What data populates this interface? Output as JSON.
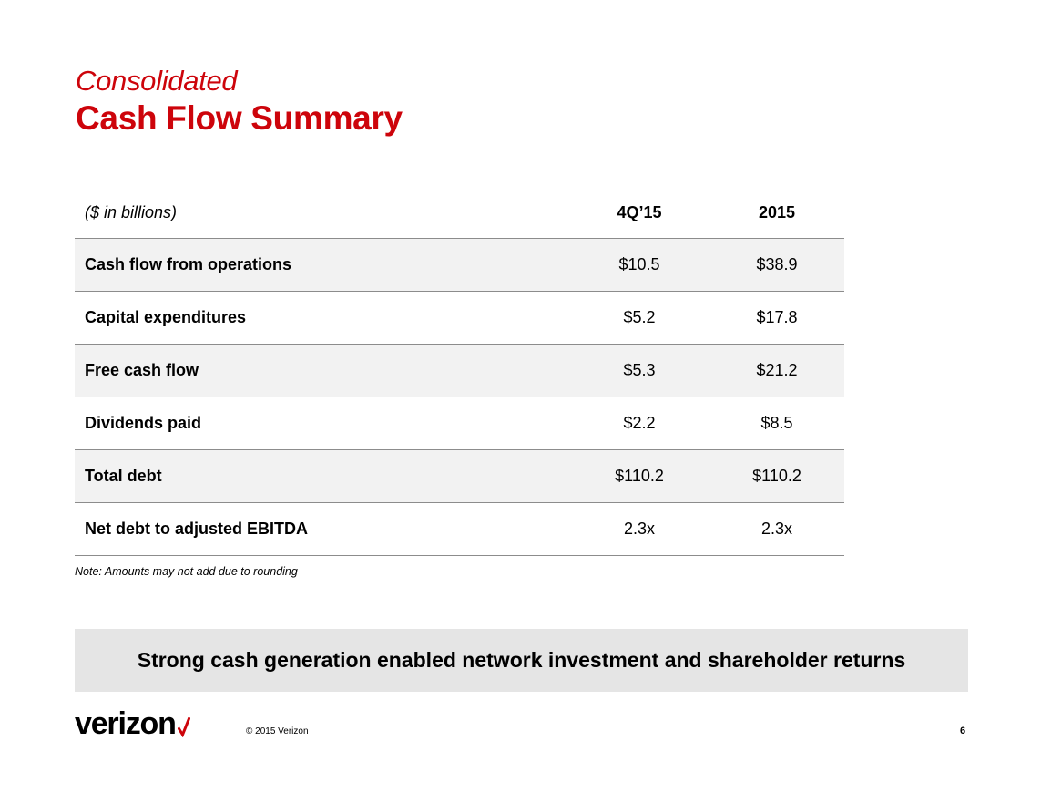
{
  "title": {
    "subtitle": "Consolidated",
    "main": "Cash Flow Summary"
  },
  "table": {
    "header": {
      "label": "($ in billions)",
      "col1": "4Q’15",
      "col2": "2015"
    },
    "rows": [
      {
        "label": "Cash flow from operations",
        "col1": "$10.5",
        "col2": "$38.9"
      },
      {
        "label": "Capital expenditures",
        "col1": "$5.2",
        "col2": "$17.8"
      },
      {
        "label": "Free cash flow",
        "col1": "$5.3",
        "col2": "$21.2"
      },
      {
        "label": "Dividends paid",
        "col1": "$2.2",
        "col2": "$8.5"
      },
      {
        "label": "Total debt",
        "col1": "$110.2",
        "col2": "$110.2"
      },
      {
        "label": "Net debt to adjusted EBITDA",
        "col1": "2.3x",
        "col2": "2.3x"
      }
    ]
  },
  "note": "Note:  Amounts may not add due to rounding",
  "banner": "Strong cash generation enabled network investment and shareholder returns",
  "footer": {
    "logo_text": "verizon",
    "logo_icon": "red-check-icon",
    "copyright": "© 2015 Verizon",
    "page_number": "6"
  },
  "colors": {
    "brand_red": "#cd040b",
    "row_shade": "#f2f2f2",
    "banner_bg": "#e5e5e5",
    "rule": "#8c8c8c"
  }
}
